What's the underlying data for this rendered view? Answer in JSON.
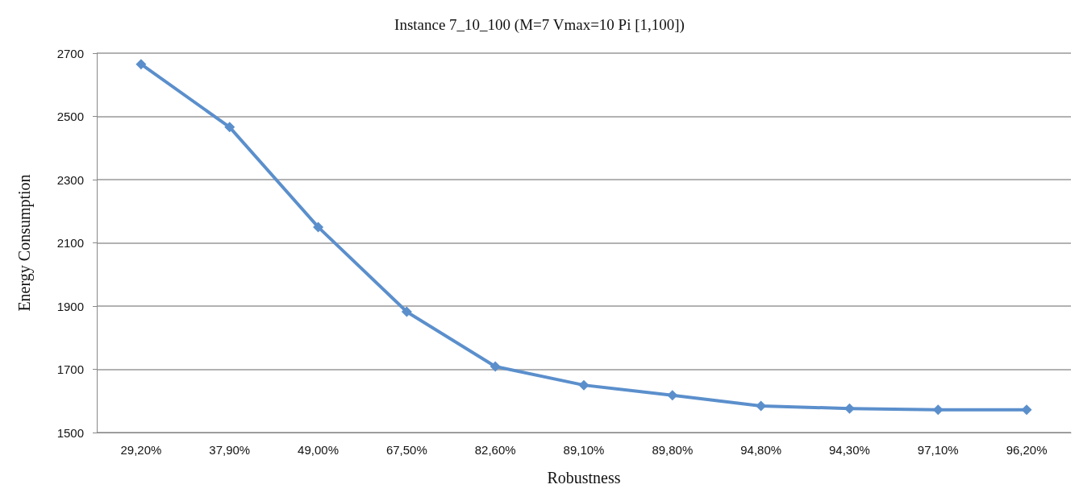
{
  "chart_data": {
    "type": "line",
    "title": "Instance 7_10_100 (M=7 Vmax=10 Pi [1,100])",
    "xlabel": "Robustness",
    "ylabel": "Energy Consumption",
    "categories": [
      "29,20%",
      "37,90%",
      "49,00%",
      "67,50%",
      "82,60%",
      "89,10%",
      "89,80%",
      "94,80%",
      "94,30%",
      "97,10%",
      "96,20%"
    ],
    "series": [
      {
        "color": "#5b8fcc",
        "values": [
          2665,
          2466,
          2150,
          1882,
          1709,
          1650,
          1618,
          1584,
          1576,
          1572,
          1572
        ]
      }
    ],
    "ylim": [
      1500,
      2700
    ],
    "yticks": [
      1500,
      1700,
      1900,
      2100,
      2300,
      2500,
      2700
    ],
    "grid": "y",
    "marker": "diamond",
    "line_style": "solid"
  }
}
